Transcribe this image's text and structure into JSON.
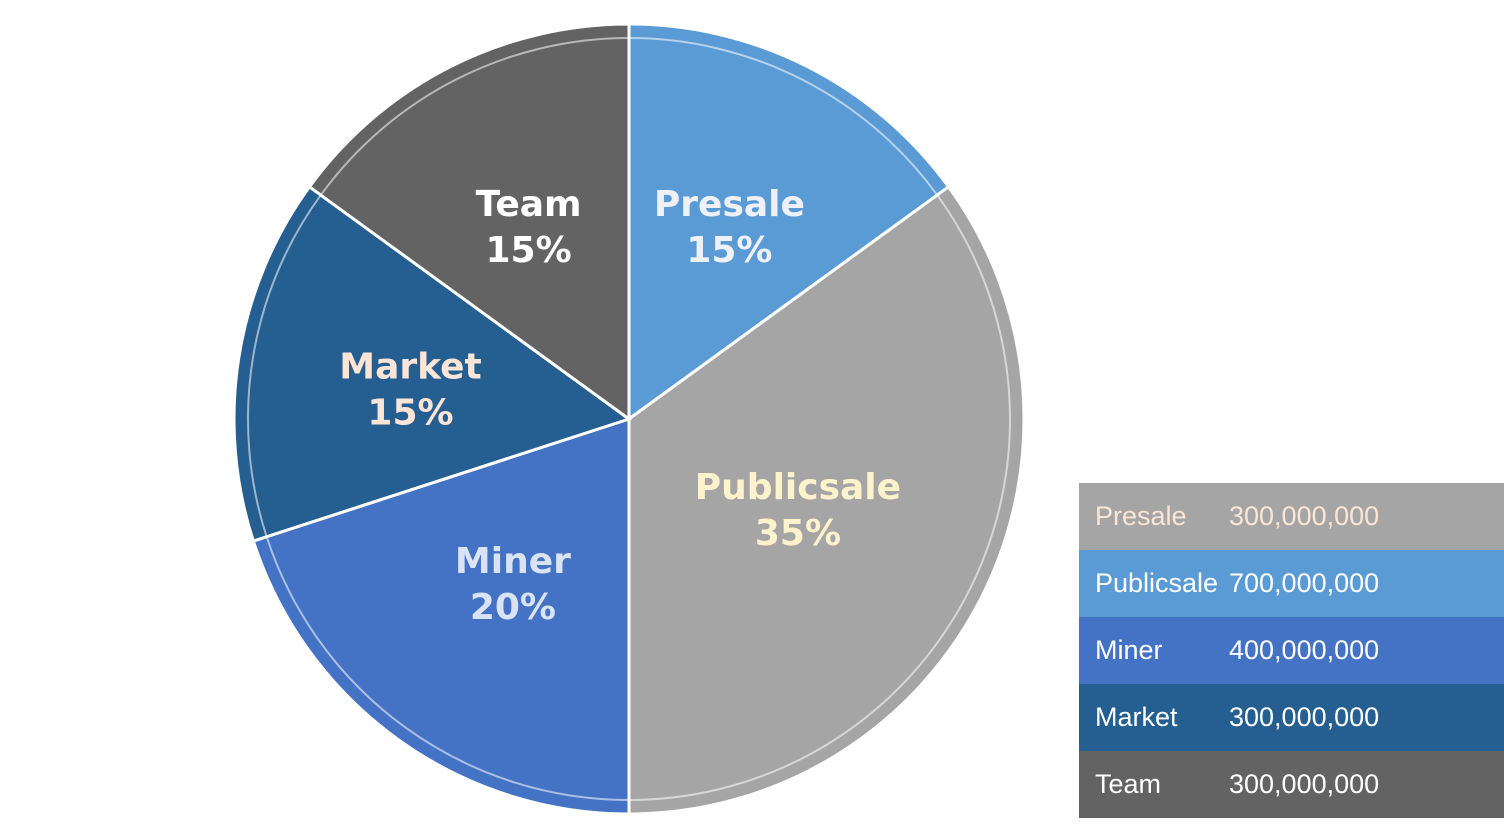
{
  "chart_data": {
    "type": "pie",
    "slices": [
      {
        "name": "Presale",
        "percent": 15,
        "percent_label": "15%",
        "color": "#5B9BD5",
        "label_color": "#EEF1F8"
      },
      {
        "name": "Publicsale",
        "percent": 35,
        "percent_label": "35%",
        "color": "#A5A5A5",
        "label_color": "#FFF2CC"
      },
      {
        "name": "Miner",
        "percent": 20,
        "percent_label": "20%",
        "color": "#4472C4",
        "label_color": "#DAE3F3"
      },
      {
        "name": "Market",
        "percent": 15,
        "percent_label": "15%",
        "color": "#255E91",
        "label_color": "#FBE5D6"
      },
      {
        "name": "Team",
        "percent": 15,
        "percent_label": "15%",
        "color": "#636363",
        "label_color": "#FFFFFF"
      }
    ]
  },
  "table": {
    "rows": [
      {
        "name": "Presale",
        "value": "300,000,000",
        "bg": "#A5A5A5",
        "color": "#FBE5D6"
      },
      {
        "name": "Publicsale",
        "value": "700,000,000",
        "bg": "#5B9BD5",
        "color": "#FFFFFF"
      },
      {
        "name": "Miner",
        "value": "400,000,000",
        "bg": "#4472C4",
        "color": "#FFFFFF"
      },
      {
        "name": "Market",
        "value": "300,000,000",
        "bg": "#255E91",
        "color": "#FFFFFF"
      },
      {
        "name": "Team",
        "value": "300,000,000",
        "bg": "#636363",
        "color": "#FFFFFF"
      }
    ]
  }
}
